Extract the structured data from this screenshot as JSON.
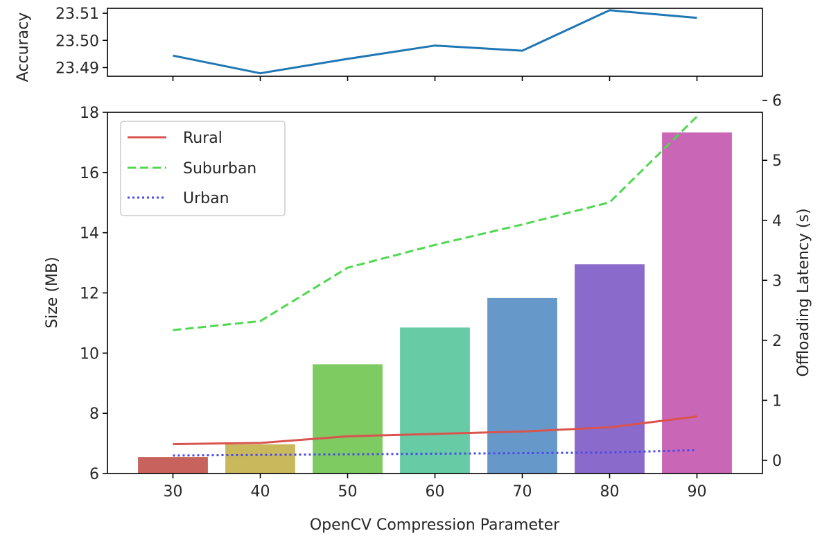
{
  "chart_data": [
    {
      "type": "line",
      "panel": "top",
      "title": "",
      "xlabel": "",
      "ylabel": "Accuracy",
      "x": [
        30,
        40,
        50,
        60,
        70,
        80,
        90
      ],
      "xlim": [
        22.5,
        97.5
      ],
      "ylim": [
        23.4868,
        23.5118
      ],
      "yticks": [
        23.49,
        23.5,
        23.51
      ],
      "ytick_labels": [
        "23.49",
        "23.50",
        "23.51"
      ],
      "grid": false,
      "series": [
        {
          "name": "Accuracy",
          "values": [
            23.4944,
            23.4879,
            23.4932,
            23.4981,
            23.4962,
            23.5111,
            23.5083
          ],
          "color": "#1f77b4"
        }
      ]
    },
    {
      "type": "bar",
      "panel": "bottom",
      "title": "",
      "xlabel": "OpenCV Compression Parameter",
      "ylabel": "Size (MB)",
      "y2label": "Offloading Latency (s)",
      "categories": [
        "30",
        "40",
        "50",
        "60",
        "70",
        "80",
        "90"
      ],
      "x": [
        30,
        40,
        50,
        60,
        70,
        80,
        90
      ],
      "xlim": [
        22.5,
        97.5
      ],
      "ylim": [
        6,
        18
      ],
      "yticks": [
        6,
        8,
        10,
        12,
        14,
        16,
        18
      ],
      "y2lim": [
        -0.22,
        5.8
      ],
      "y2ticks": [
        0,
        1,
        2,
        3,
        4,
        5,
        6
      ],
      "bar_width": 8,
      "values": [
        6.55,
        6.97,
        9.63,
        10.85,
        11.83,
        12.95,
        17.33
      ],
      "bar_colors": [
        "#c8625c",
        "#c9b85c",
        "#7ecb62",
        "#67cba5",
        "#6699c9",
        "#8a6acb",
        "#c966b6"
      ],
      "legend_position": "top-left",
      "series": [
        {
          "name": "Rural",
          "axis": "right",
          "style": "solid",
          "color": "#d9534f",
          "values": [
            0.27,
            0.29,
            0.4,
            0.44,
            0.48,
            0.55,
            0.73
          ]
        },
        {
          "name": "Suburban",
          "axis": "right",
          "style": "dashed",
          "color": "#4fd84f",
          "values": [
            2.17,
            2.32,
            3.21,
            3.59,
            3.93,
            4.3,
            5.73
          ]
        },
        {
          "name": "Urban",
          "axis": "right",
          "style": "dotted",
          "color": "#4a4ae6",
          "values": [
            0.08,
            0.09,
            0.1,
            0.11,
            0.12,
            0.13,
            0.17
          ]
        }
      ]
    }
  ]
}
